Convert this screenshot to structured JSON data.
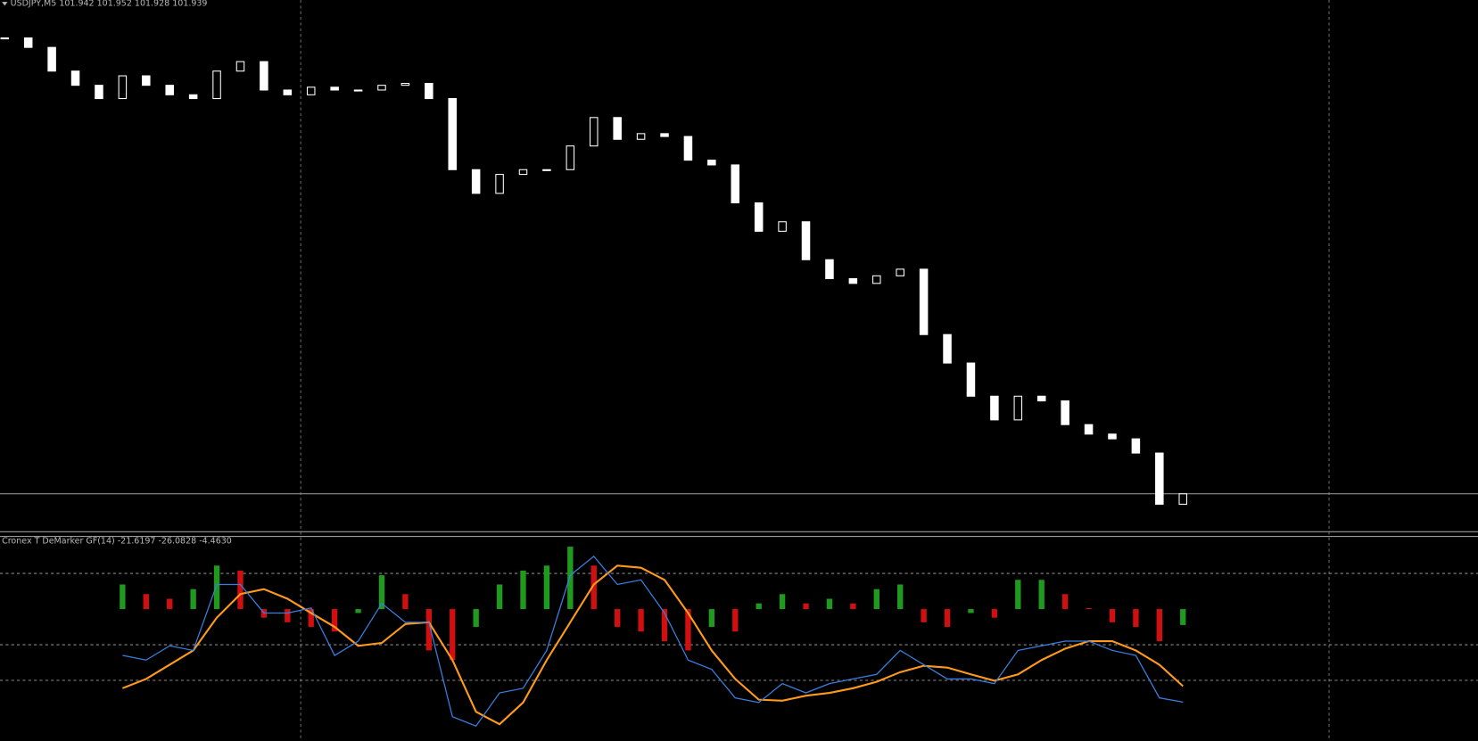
{
  "chart_data": [
    {
      "type": "candlestick",
      "title": "USDJPY,M5  101.942 101.952 101.928 101.939",
      "color": "#ffffff",
      "bid_line_color": "#a0a0a0",
      "ylim": [
        101.9,
        102.46
      ],
      "values": [
        102.42,
        102.41,
        102.385,
        102.37,
        102.356,
        102.38,
        102.37,
        102.36,
        102.356,
        102.385,
        102.395,
        102.365,
        102.36,
        102.368,
        102.365,
        102.365,
        102.37,
        102.372,
        102.356,
        102.281,
        102.256,
        102.276,
        102.281,
        102.281,
        102.306,
        102.336,
        102.313,
        102.319,
        102.316,
        102.291,
        102.286,
        102.246,
        102.216,
        102.226,
        102.186,
        102.166,
        102.161,
        102.169,
        102.176,
        102.107,
        102.077,
        102.042,
        102.017,
        102.042,
        102.037,
        102.012,
        102.002,
        101.997,
        101.982,
        101.928,
        101.939
      ]
    },
    {
      "type": "line",
      "title": "Cronex T DeMarker GF(14) -21.6197 -26.0828 -4.4630",
      "ylim": [
        -37,
        18
      ],
      "levels": [
        10,
        -10,
        -20
      ],
      "series": [
        {
          "style": "histogram",
          "up_color": "#1f9a1f",
          "down_color": "#d01010",
          "values": [
            null,
            null,
            null,
            null,
            null,
            6.9,
            4.2,
            2.9,
            5.6,
            12.2,
            10.8,
            -2.4,
            -3.7,
            -5.0,
            -6.3,
            -1.1,
            9.5,
            4.2,
            -11.6,
            -14.3,
            -5.0,
            6.9,
            10.8,
            12.2,
            17.5,
            12.2,
            -5.0,
            -6.3,
            -9.0,
            -11.6,
            -5.0,
            -6.3,
            1.6,
            4.2,
            1.6,
            2.9,
            1.6,
            5.6,
            6.9,
            -3.7,
            -5.0,
            -1.1,
            -2.4,
            8.2,
            8.2,
            4.2,
            0.3,
            -3.7,
            -5.0,
            -9.0,
            -4.463
          ]
        },
        {
          "style": "line",
          "color": "#ff9a1a",
          "values": [
            null,
            null,
            null,
            null,
            null,
            -22.2,
            -19.6,
            -15.6,
            -11.6,
            -2.4,
            4.2,
            5.6,
            2.9,
            -1.1,
            -5.0,
            -10.3,
            -9.5,
            -4.2,
            -3.7,
            -14.3,
            -28.8,
            -32.3,
            -26.2,
            -14.3,
            -3.7,
            6.9,
            12.2,
            11.6,
            8.2,
            -1.1,
            -11.6,
            -19.6,
            -25.4,
            -25.7,
            -24.3,
            -23.5,
            -22.2,
            -20.4,
            -17.7,
            -15.9,
            -16.4,
            -18.3,
            -20.1,
            -18.3,
            -14.3,
            -11.1,
            -9.0,
            -9.0,
            -11.6,
            -15.6,
            -21.6197
          ]
        },
        {
          "style": "line",
          "color": "#3a7fe0",
          "values": [
            null,
            null,
            null,
            null,
            null,
            -13.0,
            -14.3,
            -10.3,
            -11.6,
            6.9,
            6.9,
            -1.1,
            -1.1,
            0.3,
            -13.0,
            -9.0,
            1.6,
            -3.7,
            -3.7,
            -30.2,
            -32.8,
            -23.5,
            -22.2,
            -11.6,
            9.5,
            14.8,
            6.9,
            8.2,
            -1.1,
            -14.3,
            -16.9,
            -24.9,
            -26.2,
            -20.9,
            -23.5,
            -20.9,
            -19.6,
            -18.3,
            -11.6,
            -15.6,
            -19.6,
            -19.6,
            -20.9,
            -11.6,
            -10.3,
            -9.0,
            -9.0,
            -11.6,
            -13.0,
            -24.9,
            -26.0828
          ]
        }
      ]
    }
  ]
}
